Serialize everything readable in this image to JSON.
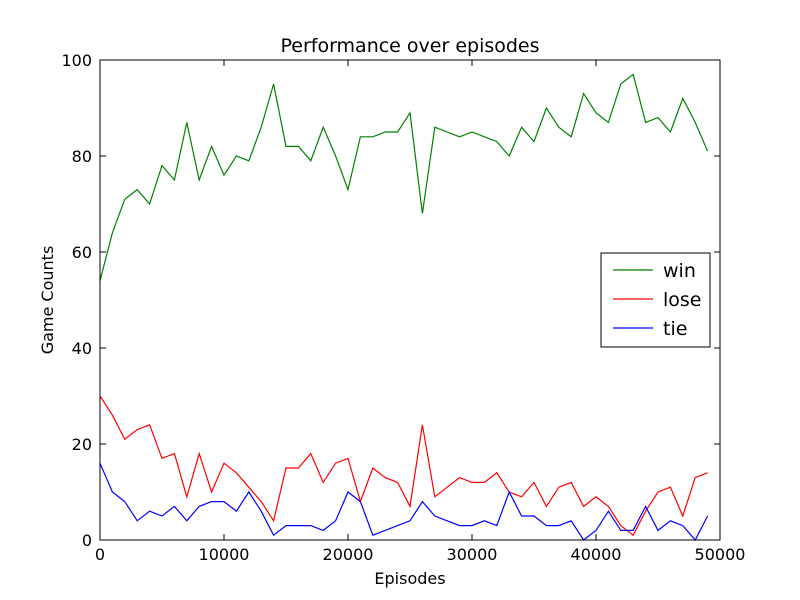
{
  "chart_data": {
    "type": "line",
    "title": "Performance over episodes",
    "xlabel": "Episodes",
    "ylabel": "Game Counts",
    "xlim": [
      0,
      50000
    ],
    "ylim": [
      0,
      100
    ],
    "xticks": [
      0,
      10000,
      20000,
      30000,
      40000,
      50000
    ],
    "yticks": [
      0,
      20,
      40,
      60,
      80,
      100
    ],
    "grid": false,
    "legend_position": "center-right",
    "x": [
      0,
      1000,
      2000,
      3000,
      4000,
      5000,
      6000,
      7000,
      8000,
      9000,
      10000,
      11000,
      12000,
      13000,
      14000,
      15000,
      16000,
      17000,
      18000,
      19000,
      20000,
      21000,
      22000,
      23000,
      24000,
      25000,
      26000,
      27000,
      28000,
      29000,
      30000,
      31000,
      32000,
      33000,
      34000,
      35000,
      36000,
      37000,
      38000,
      39000,
      40000,
      41000,
      42000,
      43000,
      44000,
      45000,
      46000,
      47000,
      48000,
      49000
    ],
    "series": [
      {
        "name": "win",
        "color": "#008000",
        "values": [
          54,
          64,
          71,
          73,
          70,
          78,
          75,
          87,
          75,
          82,
          76,
          80,
          79,
          86,
          95,
          82,
          82,
          79,
          86,
          80,
          73,
          84,
          84,
          85,
          85,
          89,
          68,
          86,
          85,
          84,
          85,
          84,
          83,
          80,
          86,
          83,
          90,
          86,
          84,
          93,
          89,
          87,
          95,
          97,
          87,
          88,
          85,
          92,
          87,
          81
        ]
      },
      {
        "name": "lose",
        "color": "#ff0000",
        "values": [
          30,
          26,
          21,
          23,
          24,
          17,
          18,
          9,
          18,
          10,
          16,
          14,
          11,
          8,
          4,
          15,
          15,
          18,
          12,
          16,
          17,
          8,
          15,
          13,
          12,
          7,
          24,
          9,
          11,
          13,
          12,
          12,
          14,
          10,
          9,
          12,
          7,
          11,
          12,
          7,
          9,
          7,
          3,
          1,
          6,
          10,
          11,
          5,
          13,
          14
        ]
      },
      {
        "name": "tie",
        "color": "#0000ff",
        "values": [
          16,
          10,
          8,
          4,
          6,
          5,
          7,
          4,
          7,
          8,
          8,
          6,
          10,
          6,
          1,
          3,
          3,
          3,
          2,
          4,
          10,
          8,
          1,
          2,
          3,
          4,
          8,
          5,
          4,
          3,
          3,
          4,
          3,
          10,
          5,
          5,
          3,
          3,
          4,
          0,
          2,
          6,
          2,
          2,
          7,
          2,
          4,
          3,
          0,
          5
        ]
      }
    ]
  }
}
